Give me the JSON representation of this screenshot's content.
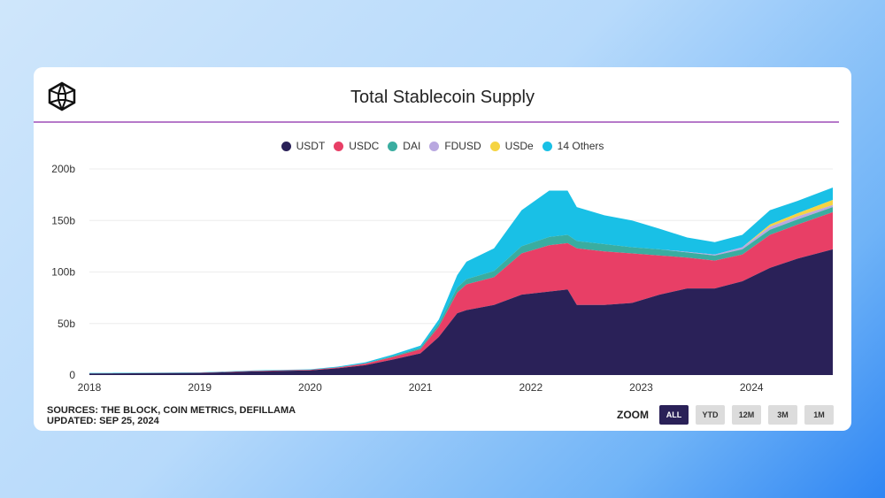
{
  "title": "Total Stablecoin Supply",
  "footer": {
    "sources": "SOURCES: THE BLOCK, COIN METRICS, DEFILLAMA",
    "updated": "UPDATED: SEP 25, 2024"
  },
  "zoom": {
    "label": "ZOOM",
    "buttons": [
      "ALL",
      "YTD",
      "12M",
      "3M",
      "1M"
    ],
    "active": "ALL"
  },
  "chart_data": {
    "type": "area",
    "stacked": true,
    "title": "Total Stablecoin Supply",
    "ylim": [
      0,
      200
    ],
    "yticks": [
      "0",
      "50b",
      "100b",
      "150b",
      "200b"
    ],
    "ytick_values": [
      0,
      50,
      100,
      150,
      200
    ],
    "xticks": [
      "2018",
      "2019",
      "2020",
      "2021",
      "2022",
      "2023",
      "2024"
    ],
    "grid": true,
    "legend": "top",
    "dates": [
      "2018-01",
      "2019-01",
      "2019-07",
      "2020-01",
      "2020-04",
      "2020-07",
      "2020-10",
      "2021-01",
      "2021-03",
      "2021-05",
      "2021-06",
      "2021-09",
      "2021-12",
      "2022-03",
      "2022-05",
      "2022-06",
      "2022-09",
      "2022-12",
      "2023-03",
      "2023-06",
      "2023-09",
      "2023-12",
      "2024-03",
      "2024-06",
      "2024-09"
    ],
    "series": [
      {
        "name": "USDT",
        "color": "#2a2158",
        "values": [
          1.5,
          2,
          3.5,
          4.5,
          6.5,
          9.5,
          15,
          21,
          37,
          60,
          63,
          68,
          78,
          81,
          83,
          68,
          68,
          70,
          78,
          84,
          84,
          91,
          104,
          113,
          122
        ]
      },
      {
        "name": "USDC",
        "color": "#e83f66",
        "values": [
          0,
          0.2,
          0.5,
          0.5,
          0.8,
          1.5,
          2.5,
          4,
          10,
          20,
          25,
          27,
          40,
          45,
          45,
          55,
          52,
          48,
          38,
          30,
          27,
          26,
          32,
          33,
          36
        ]
      },
      {
        "name": "DAI",
        "color": "#3aada0",
        "values": [
          0,
          0.1,
          0.1,
          0.1,
          0.1,
          0.3,
          0.8,
          1.5,
          3,
          5,
          5,
          6,
          7,
          8,
          8,
          7,
          7,
          6,
          6,
          5,
          5,
          5,
          5,
          5,
          5
        ]
      },
      {
        "name": "FDUSD",
        "color": "#b9a8e0",
        "values": [
          0,
          0,
          0,
          0,
          0,
          0,
          0,
          0,
          0,
          0,
          0,
          0,
          0,
          0,
          0,
          0,
          0,
          0,
          0,
          0.5,
          1,
          2,
          3,
          3,
          2
        ]
      },
      {
        "name": "USDe",
        "color": "#f5d442",
        "values": [
          0,
          0,
          0,
          0,
          0,
          0,
          0,
          0,
          0,
          0,
          0,
          0,
          0,
          0,
          0,
          0,
          0,
          0,
          0,
          0,
          0,
          0,
          2,
          3,
          5
        ]
      },
      {
        "name": "14 Others",
        "color": "#19c0e6",
        "values": [
          0.5,
          0.3,
          0.4,
          0.5,
          0.8,
          1,
          1.5,
          2,
          4,
          12,
          17,
          22,
          35,
          45,
          43,
          33,
          28,
          26,
          20,
          14,
          12,
          12,
          14,
          12,
          12
        ]
      }
    ]
  }
}
